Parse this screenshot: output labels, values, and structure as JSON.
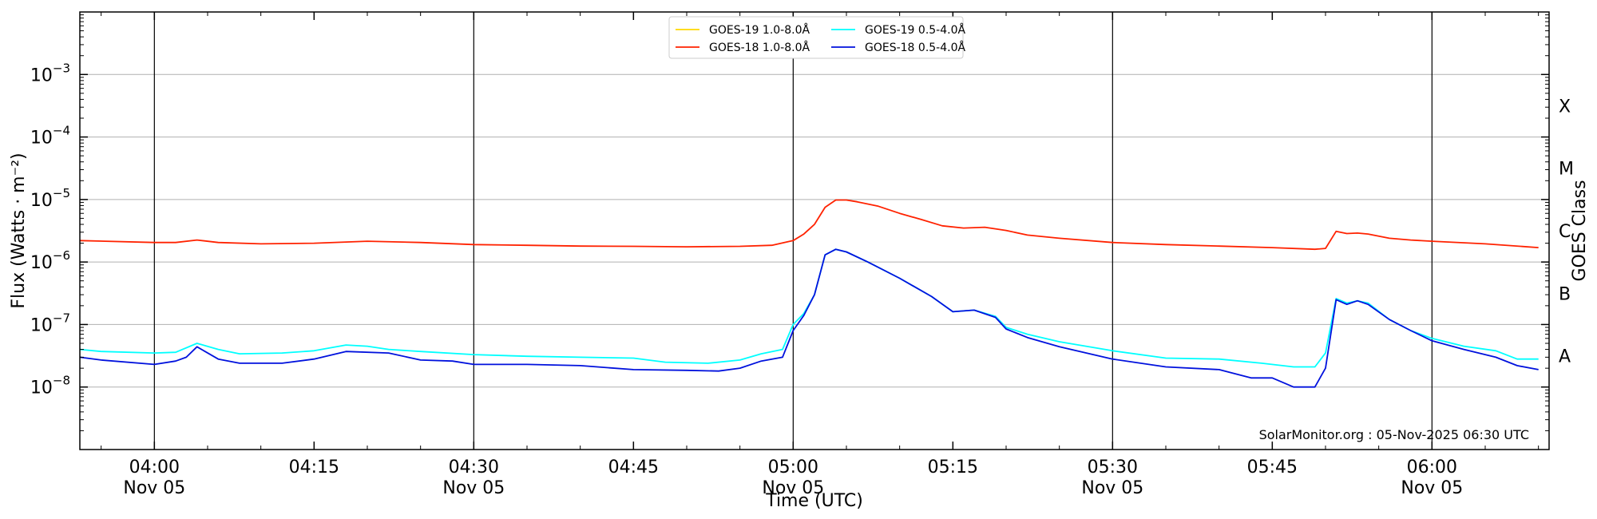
{
  "chart_data": {
    "type": "line",
    "xlabel": "Time (UTC)",
    "ylabel": "Flux (Watts · m⁻²)",
    "ylabel_right": "GOES Class",
    "yscale": "log",
    "ylim": [
      1e-09,
      0.01
    ],
    "xlim": [
      "03:53",
      "06:11"
    ],
    "date_label": "Nov 05",
    "x_ticks": [
      {
        "time": "04:00",
        "date": "Nov 05",
        "major": true
      },
      {
        "time": "04:15",
        "date": "",
        "major": false
      },
      {
        "time": "04:30",
        "date": "Nov 05",
        "major": true
      },
      {
        "time": "04:45",
        "date": "",
        "major": false
      },
      {
        "time": "05:00",
        "date": "Nov 05",
        "major": true
      },
      {
        "time": "05:15",
        "date": "",
        "major": false
      },
      {
        "time": "05:30",
        "date": "Nov 05",
        "major": true
      },
      {
        "time": "05:45",
        "date": "",
        "major": false
      },
      {
        "time": "06:00",
        "date": "Nov 05",
        "major": true
      }
    ],
    "y_ticks": [
      {
        "base": "10",
        "exp": "−8",
        "value": 1e-08
      },
      {
        "base": "10",
        "exp": "−7",
        "value": 1e-07
      },
      {
        "base": "10",
        "exp": "−6",
        "value": 1e-06
      },
      {
        "base": "10",
        "exp": "−5",
        "value": 1e-05
      },
      {
        "base": "10",
        "exp": "−4",
        "value": 0.0001
      },
      {
        "base": "10",
        "exp": "−3",
        "value": 0.001
      }
    ],
    "goes_classes": [
      {
        "label": "A",
        "low": 1e-08
      },
      {
        "label": "B",
        "low": 1e-07
      },
      {
        "label": "C",
        "low": 1e-06
      },
      {
        "label": "M",
        "low": 1e-05
      },
      {
        "label": "X",
        "low": 0.0001
      }
    ],
    "grid": "horizontal",
    "legend_position": "top-center",
    "annotation": "SolarMonitor.org : 05-Nov-2025 06:30 UTC",
    "series": [
      {
        "name": "GOES-19 1.0-8.0Å",
        "color": "#FFD700",
        "points": []
      },
      {
        "name": "GOES-18 1.0-8.0Å",
        "color": "#FF2200",
        "points": [
          [
            "03:53",
            2.2e-06
          ],
          [
            "04:00",
            2.05e-06
          ],
          [
            "04:02",
            2.05e-06
          ],
          [
            "04:04",
            2.25e-06
          ],
          [
            "04:06",
            2.05e-06
          ],
          [
            "04:10",
            1.95e-06
          ],
          [
            "04:15",
            2e-06
          ],
          [
            "04:20",
            2.15e-06
          ],
          [
            "04:25",
            2.05e-06
          ],
          [
            "04:30",
            1.9e-06
          ],
          [
            "04:35",
            1.85e-06
          ],
          [
            "04:40",
            1.8e-06
          ],
          [
            "04:45",
            1.78e-06
          ],
          [
            "04:50",
            1.75e-06
          ],
          [
            "04:55",
            1.78e-06
          ],
          [
            "04:58",
            1.85e-06
          ],
          [
            "05:00",
            2.2e-06
          ],
          [
            "05:01",
            2.8e-06
          ],
          [
            "05:02",
            4e-06
          ],
          [
            "05:03",
            7.5e-06
          ],
          [
            "05:04",
            9.8e-06
          ],
          [
            "05:05",
            9.8e-06
          ],
          [
            "05:06",
            9.2e-06
          ],
          [
            "05:08",
            7.8e-06
          ],
          [
            "05:10",
            6e-06
          ],
          [
            "05:12",
            4.8e-06
          ],
          [
            "05:14",
            3.8e-06
          ],
          [
            "05:16",
            3.5e-06
          ],
          [
            "05:18",
            3.6e-06
          ],
          [
            "05:20",
            3.2e-06
          ],
          [
            "05:22",
            2.7e-06
          ],
          [
            "05:25",
            2.4e-06
          ],
          [
            "05:30",
            2.05e-06
          ],
          [
            "05:35",
            1.9e-06
          ],
          [
            "05:40",
            1.8e-06
          ],
          [
            "05:45",
            1.7e-06
          ],
          [
            "05:49",
            1.6e-06
          ],
          [
            "05:50",
            1.65e-06
          ],
          [
            "05:51",
            3.1e-06
          ],
          [
            "05:52",
            2.85e-06
          ],
          [
            "05:53",
            2.9e-06
          ],
          [
            "05:54",
            2.8e-06
          ],
          [
            "05:56",
            2.4e-06
          ],
          [
            "05:58",
            2.25e-06
          ],
          [
            "06:00",
            2.15e-06
          ],
          [
            "06:05",
            1.95e-06
          ],
          [
            "06:10",
            1.7e-06
          ]
        ]
      },
      {
        "name": "GOES-19 0.5-4.0Å",
        "color": "#00FFFF",
        "points": [
          [
            "03:53",
            4e-08
          ],
          [
            "03:55",
            3.7e-08
          ],
          [
            "04:00",
            3.5e-08
          ],
          [
            "04:02",
            3.6e-08
          ],
          [
            "04:04",
            5e-08
          ],
          [
            "04:06",
            4e-08
          ],
          [
            "04:08",
            3.4e-08
          ],
          [
            "04:12",
            3.5e-08
          ],
          [
            "04:15",
            3.8e-08
          ],
          [
            "04:18",
            4.7e-08
          ],
          [
            "04:20",
            4.5e-08
          ],
          [
            "04:22",
            4e-08
          ],
          [
            "04:25",
            3.7e-08
          ],
          [
            "04:30",
            3.3e-08
          ],
          [
            "04:35",
            3.1e-08
          ],
          [
            "04:40",
            3e-08
          ],
          [
            "04:45",
            2.9e-08
          ],
          [
            "04:48",
            2.5e-08
          ],
          [
            "04:52",
            2.4e-08
          ],
          [
            "04:55",
            2.7e-08
          ],
          [
            "04:57",
            3.4e-08
          ],
          [
            "04:59",
            4e-08
          ],
          [
            "05:00",
            1e-07
          ],
          [
            "05:01",
            1.5e-07
          ],
          [
            "05:02",
            3e-07
          ],
          [
            "05:03",
            1.3e-06
          ],
          [
            "05:04",
            1.6e-06
          ],
          [
            "05:05",
            1.45e-06
          ],
          [
            "05:07",
            1e-06
          ],
          [
            "05:10",
            5.5e-07
          ],
          [
            "05:13",
            2.8e-07
          ],
          [
            "05:15",
            1.6e-07
          ],
          [
            "05:17",
            1.7e-07
          ],
          [
            "05:19",
            1.35e-07
          ],
          [
            "05:20",
            9e-08
          ],
          [
            "05:22",
            7e-08
          ],
          [
            "05:25",
            5.3e-08
          ],
          [
            "05:30",
            3.8e-08
          ],
          [
            "05:35",
            2.9e-08
          ],
          [
            "05:40",
            2.8e-08
          ],
          [
            "05:44",
            2.4e-08
          ],
          [
            "05:47",
            2.1e-08
          ],
          [
            "05:49",
            2.1e-08
          ],
          [
            "05:50",
            3.5e-08
          ],
          [
            "05:51",
            2.6e-07
          ],
          [
            "05:52",
            2.2e-07
          ],
          [
            "05:53",
            2.4e-07
          ],
          [
            "05:54",
            2.2e-07
          ],
          [
            "05:56",
            1.2e-07
          ],
          [
            "05:58",
            8e-08
          ],
          [
            "06:00",
            6e-08
          ],
          [
            "06:03",
            4.5e-08
          ],
          [
            "06:06",
            3.8e-08
          ],
          [
            "06:08",
            2.8e-08
          ],
          [
            "06:10",
            2.8e-08
          ]
        ]
      },
      {
        "name": "GOES-18 0.5-4.0Å",
        "color": "#0011DD",
        "points": [
          [
            "03:53",
            3e-08
          ],
          [
            "03:55",
            2.7e-08
          ],
          [
            "04:00",
            2.3e-08
          ],
          [
            "04:02",
            2.6e-08
          ],
          [
            "04:03",
            3e-08
          ],
          [
            "04:04",
            4.4e-08
          ],
          [
            "04:06",
            2.8e-08
          ],
          [
            "04:08",
            2.4e-08
          ],
          [
            "04:12",
            2.4e-08
          ],
          [
            "04:15",
            2.8e-08
          ],
          [
            "04:18",
            3.7e-08
          ],
          [
            "04:22",
            3.5e-08
          ],
          [
            "04:25",
            2.7e-08
          ],
          [
            "04:28",
            2.6e-08
          ],
          [
            "04:30",
            2.3e-08
          ],
          [
            "04:35",
            2.3e-08
          ],
          [
            "04:40",
            2.2e-08
          ],
          [
            "04:45",
            1.9e-08
          ],
          [
            "04:50",
            1.85e-08
          ],
          [
            "04:53",
            1.8e-08
          ],
          [
            "04:55",
            2e-08
          ],
          [
            "04:57",
            2.6e-08
          ],
          [
            "04:59",
            3e-08
          ],
          [
            "05:00",
            8e-08
          ],
          [
            "05:01",
            1.4e-07
          ],
          [
            "05:02",
            3e-07
          ],
          [
            "05:03",
            1.3e-06
          ],
          [
            "05:04",
            1.6e-06
          ],
          [
            "05:05",
            1.45e-06
          ],
          [
            "05:07",
            1e-06
          ],
          [
            "05:10",
            5.5e-07
          ],
          [
            "05:13",
            2.8e-07
          ],
          [
            "05:15",
            1.6e-07
          ],
          [
            "05:17",
            1.7e-07
          ],
          [
            "05:19",
            1.3e-07
          ],
          [
            "05:20",
            8.5e-08
          ],
          [
            "05:22",
            6.2e-08
          ],
          [
            "05:25",
            4.4e-08
          ],
          [
            "05:30",
            2.8e-08
          ],
          [
            "05:35",
            2.1e-08
          ],
          [
            "05:40",
            1.9e-08
          ],
          [
            "05:43",
            1.4e-08
          ],
          [
            "05:45",
            1.4e-08
          ],
          [
            "05:47",
            1e-08
          ],
          [
            "05:49",
            1e-08
          ],
          [
            "05:50",
            2e-08
          ],
          [
            "05:51",
            2.5e-07
          ],
          [
            "05:52",
            2.1e-07
          ],
          [
            "05:53",
            2.4e-07
          ],
          [
            "05:54",
            2.1e-07
          ],
          [
            "05:56",
            1.2e-07
          ],
          [
            "05:58",
            8e-08
          ],
          [
            "06:00",
            5.5e-08
          ],
          [
            "06:03",
            4e-08
          ],
          [
            "06:06",
            3e-08
          ],
          [
            "06:08",
            2.2e-08
          ],
          [
            "06:10",
            1.9e-08
          ]
        ]
      }
    ]
  }
}
